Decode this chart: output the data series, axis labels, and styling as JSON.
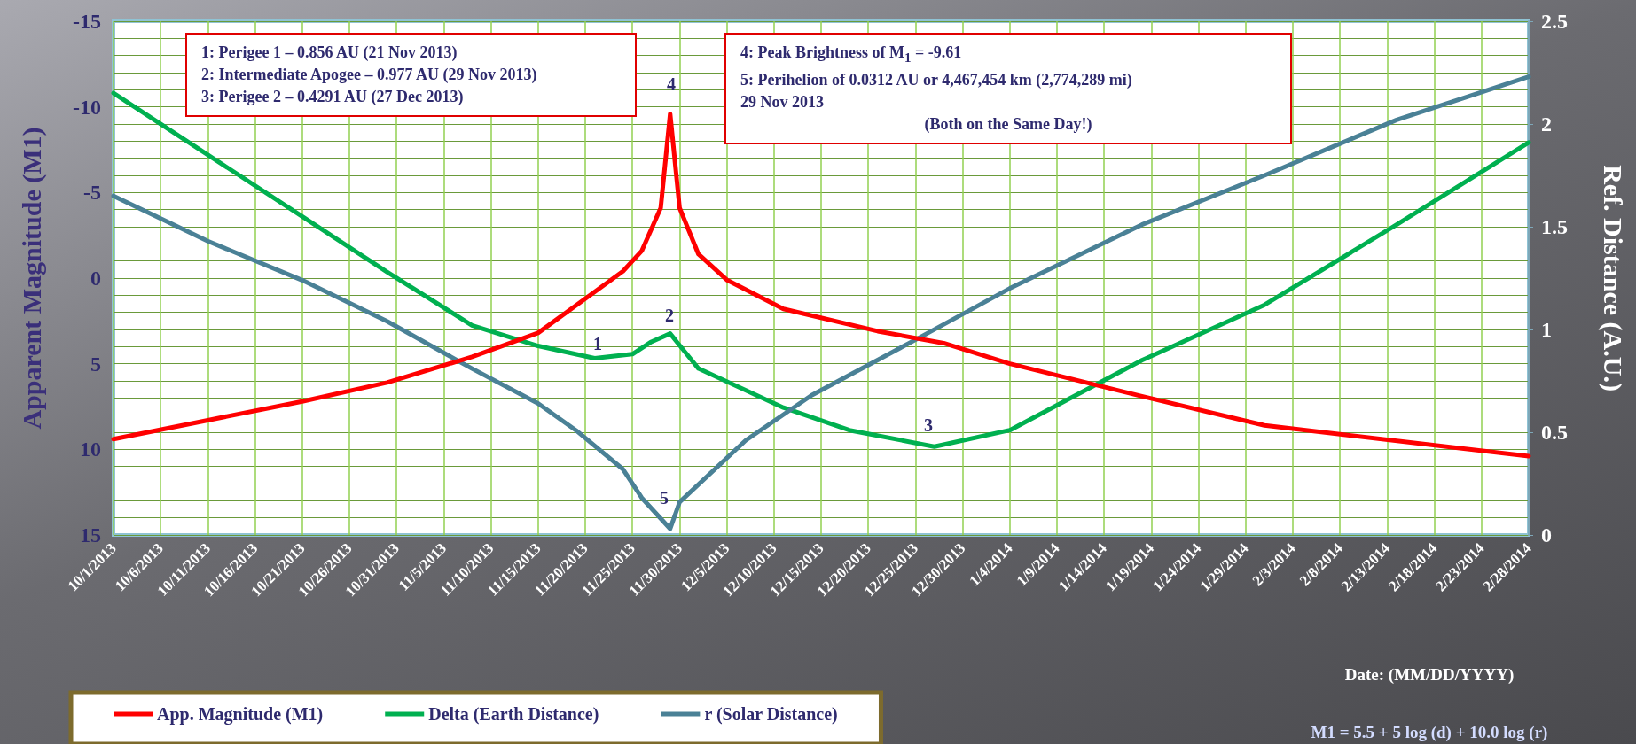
{
  "chart_data": {
    "type": "line",
    "xlabel": "Date: (MM/DD/YYYY)",
    "ylabel": "Apparent Magnitude (M1)",
    "y2label": "Ref. Distance (A.U.)",
    "xlim": [
      "2013-10-01",
      "2014-02-28"
    ],
    "xticks": [
      {
        "value": "2013-10-01",
        "label": "10/1/2013"
      },
      {
        "value": "2013-10-06",
        "label": "10/6/2013"
      },
      {
        "value": "2013-10-11",
        "label": "10/11/2013"
      },
      {
        "value": "2013-10-16",
        "label": "10/16/2013"
      },
      {
        "value": "2013-10-21",
        "label": "10/21/2013"
      },
      {
        "value": "2013-10-26",
        "label": "10/26/2013"
      },
      {
        "value": "2013-10-31",
        "label": "10/31/2013"
      },
      {
        "value": "2013-11-05",
        "label": "11/5/2013"
      },
      {
        "value": "2013-11-10",
        "label": "11/10/2013"
      },
      {
        "value": "2013-11-15",
        "label": "11/15/2013"
      },
      {
        "value": "2013-11-20",
        "label": "11/20/2013"
      },
      {
        "value": "2013-11-25",
        "label": "11/25/2013"
      },
      {
        "value": "2013-11-30",
        "label": "11/30/2013"
      },
      {
        "value": "2013-12-05",
        "label": "12/5/2013"
      },
      {
        "value": "2013-12-10",
        "label": "12/10/2013"
      },
      {
        "value": "2013-12-15",
        "label": "12/15/2013"
      },
      {
        "value": "2013-12-20",
        "label": "12/20/2013"
      },
      {
        "value": "2013-12-25",
        "label": "12/25/2013"
      },
      {
        "value": "2013-12-30",
        "label": "12/30/2013"
      },
      {
        "value": "2014-01-04",
        "label": "1/4/2014"
      },
      {
        "value": "2014-01-09",
        "label": "1/9/2014"
      },
      {
        "value": "2014-01-14",
        "label": "1/14/2014"
      },
      {
        "value": "2014-01-19",
        "label": "1/19/2014"
      },
      {
        "value": "2014-01-24",
        "label": "1/24/2014"
      },
      {
        "value": "2014-01-29",
        "label": "1/29/2014"
      },
      {
        "value": "2014-02-03",
        "label": "2/3/2014"
      },
      {
        "value": "2014-02-08",
        "label": "2/8/2014"
      },
      {
        "value": "2014-02-13",
        "label": "2/13/2014"
      },
      {
        "value": "2014-02-18",
        "label": "2/18/2014"
      },
      {
        "value": "2014-02-23",
        "label": "2/23/2014"
      },
      {
        "value": "2014-02-28",
        "label": "2/28/2014"
      }
    ],
    "ylim": [
      15,
      -15
    ],
    "yticks": [
      -15,
      {
        "value": -14,
        "label": null
      },
      {
        "value": -13,
        "label": null
      },
      {
        "value": -12,
        "label": null
      },
      {
        "value": -11,
        "label": null
      },
      -10,
      {
        "value": -9,
        "label": null
      },
      {
        "value": -8,
        "label": null
      },
      {
        "value": -7,
        "label": null
      },
      {
        "value": -6,
        "label": null
      },
      -5,
      {
        "value": -4,
        "label": null
      },
      {
        "value": -3,
        "label": null
      },
      {
        "value": -2,
        "label": null
      },
      {
        "value": -1,
        "label": null
      },
      0,
      {
        "value": 1,
        "label": null
      },
      {
        "value": 2,
        "label": null
      },
      {
        "value": 3,
        "label": null
      },
      {
        "value": 4,
        "label": null
      },
      5,
      {
        "value": 6,
        "label": null
      },
      {
        "value": 7,
        "label": null
      },
      {
        "value": 8,
        "label": null
      },
      {
        "value": 9,
        "label": null
      },
      10,
      {
        "value": 11,
        "label": null
      },
      {
        "value": 12,
        "label": null
      },
      {
        "value": 13,
        "label": null
      },
      {
        "value": 14,
        "label": null
      },
      15
    ],
    "y2lim": [
      0,
      2.5
    ],
    "y2ticks": [
      0,
      0.5,
      1,
      1.5,
      2,
      2.5
    ],
    "grid": true,
    "legend": "bottom left",
    "line_style": "solid",
    "series": [
      {
        "name": "App. Magnitude (M1)",
        "color": "#ff0000",
        "axis": "y",
        "x": [
          "2013-10-01",
          "2013-10-11",
          "2013-10-21",
          "2013-10-30",
          "2013-11-08",
          "2013-11-15",
          "2013-11-19",
          "2013-11-24",
          "2013-11-26",
          "2013-11-28",
          "2013-11-29",
          "2013-11-30",
          "2013-12-02",
          "2013-12-05",
          "2013-12-11",
          "2013-12-21",
          "2013-12-28",
          "2014-01-04",
          "2014-01-18",
          "2014-01-31",
          "2014-02-28"
        ],
        "values": [
          9.4,
          8.3,
          7.2,
          6.1,
          4.6,
          3.2,
          1.6,
          -0.4,
          -1.6,
          -4.1,
          -9.6,
          -4.1,
          -1.4,
          0.1,
          1.8,
          3.1,
          3.8,
          5.0,
          6.9,
          8.6,
          10.4
        ]
      },
      {
        "name": "Delta (Earth Distance)",
        "color": "#00b050",
        "axis": "y2",
        "x": [
          "2013-10-01",
          "2013-10-21",
          "2013-10-30",
          "2013-11-08",
          "2013-11-15",
          "2013-11-21",
          "2013-11-25",
          "2013-11-27",
          "2013-11-29",
          "2013-12-02",
          "2013-12-11",
          "2013-12-18",
          "2013-12-27",
          "2014-01-04",
          "2014-01-18",
          "2014-01-31",
          "2014-02-14",
          "2014-02-28"
        ],
        "values": [
          2.15,
          1.55,
          1.28,
          1.02,
          0.92,
          0.86,
          0.88,
          0.94,
          0.98,
          0.81,
          0.62,
          0.51,
          0.43,
          0.51,
          0.85,
          1.12,
          1.51,
          1.91
        ]
      },
      {
        "name": "r (Solar Distance)",
        "color": "#4a8196",
        "axis": "y2",
        "x": [
          "2013-10-01",
          "2013-10-11",
          "2013-10-21",
          "2013-10-30",
          "2013-11-08",
          "2013-11-15",
          "2013-11-19",
          "2013-11-24",
          "2013-11-26",
          "2013-11-29",
          "2013-11-30",
          "2013-12-07",
          "2013-12-14",
          "2013-12-25",
          "2014-01-04",
          "2014-01-18",
          "2014-01-31",
          "2014-02-14",
          "2014-02-28"
        ],
        "values": [
          1.65,
          1.43,
          1.24,
          1.04,
          0.81,
          0.64,
          0.51,
          0.32,
          0.18,
          0.03,
          0.16,
          0.46,
          0.68,
          0.95,
          1.2,
          1.51,
          1.75,
          2.02,
          2.23
        ]
      }
    ],
    "annotations": [
      "1: Perigee 1 – 0.856 AU (21 Nov 2013)\n2: Intermediate Apogee – 0.977 AU (29 Nov 2013)\n3: Perigee 2 – 0.4291 AU (27 Dec 2013)",
      "4: Peak Brightness of M$_{1}$ = -9.61\n5: Perihelion of 0.0312 AU or 4,467,454 km (2,774,289 mi)\n29 Nov 2013\n(Both on the Same Day!)",
      "M1 = 5.5 + 5 log (d) + 10.0 log (r)",
      "1",
      "2",
      "3",
      "4",
      "5"
    ]
  }
}
